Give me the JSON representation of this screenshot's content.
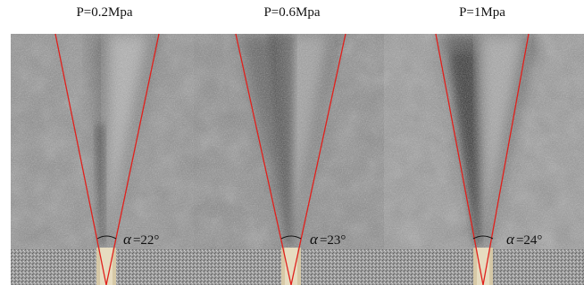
{
  "panels": [
    {
      "pressure_label": "P=0.2Mpa",
      "angle_symbol": "α",
      "angle_text": "=22°"
    },
    {
      "pressure_label": "P=0.6Mpa",
      "angle_symbol": "α",
      "angle_text": "=23°"
    },
    {
      "pressure_label": "P=1Mpa",
      "angle_symbol": "α",
      "angle_text": "=24°"
    }
  ],
  "colors": {
    "cone_lines": "#e0201c",
    "nozzle": "#d9cba8",
    "background_gray": "#8a8a8a"
  }
}
